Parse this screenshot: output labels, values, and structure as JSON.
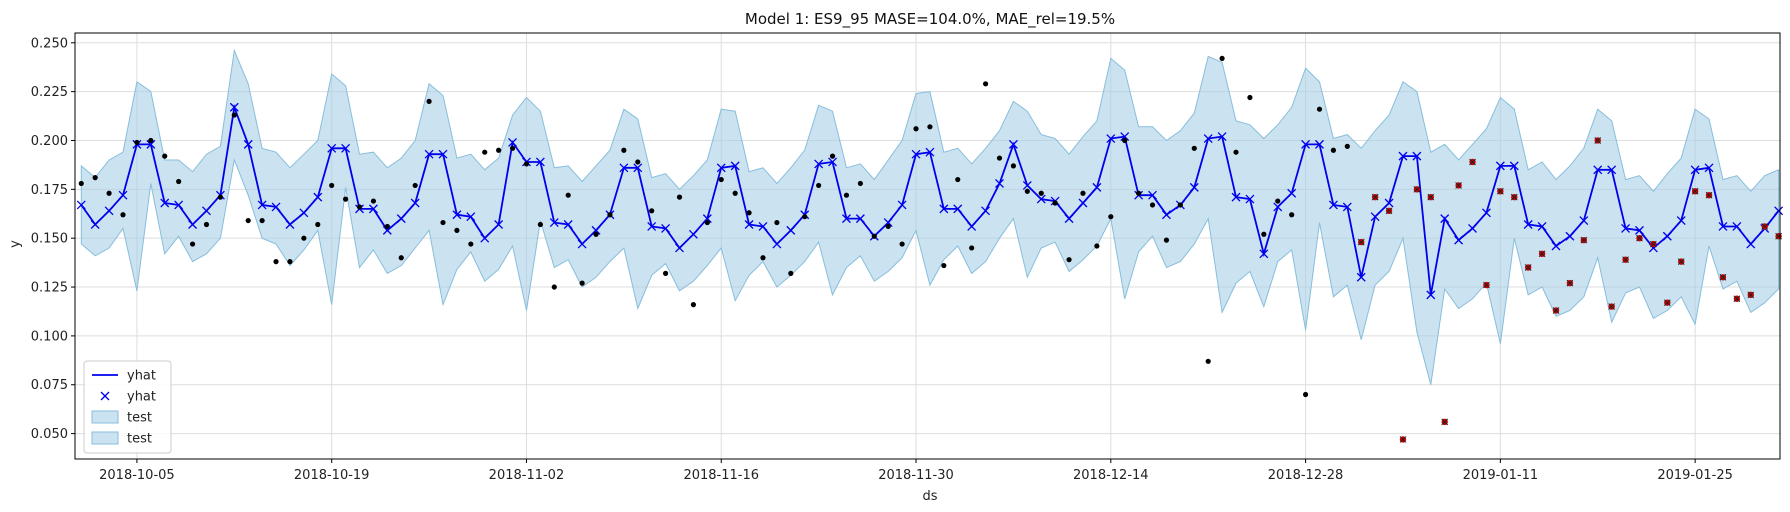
{
  "chart_data": {
    "type": "line",
    "title": "Model 1: ES9_95 MASE=104.0%, MAE_rel=19.5%",
    "xlabel": "ds",
    "ylabel": "y",
    "x_ticks": [
      "2018-10-05",
      "2018-10-19",
      "2018-11-02",
      "2018-11-16",
      "2018-11-30",
      "2018-12-14",
      "2018-12-28",
      "2019-01-11",
      "2019-01-25"
    ],
    "y_ticks": [
      "0.050",
      "0.075",
      "0.100",
      "0.125",
      "0.150",
      "0.175",
      "0.200",
      "0.225",
      "0.250"
    ],
    "ylim": [
      0.037,
      0.255
    ],
    "xlim": [
      "2018-10-01",
      "2019-01-31"
    ],
    "grid": true,
    "legend_position": "bottom-left",
    "legend": [
      "yhat",
      "yhat",
      "test",
      "test"
    ],
    "colors": {
      "yhat": "#0000ee",
      "band": "#a8cfe6",
      "band_edge": "#87bedc",
      "actual": "#000000",
      "test_marker": "#cc0000"
    },
    "series": [
      {
        "name": "yhat",
        "x": [
          "2018-10-01",
          "2018-10-02",
          "2018-10-03",
          "2018-10-04",
          "2018-10-05",
          "2018-10-06",
          "2018-10-07",
          "2018-10-08",
          "2018-10-09",
          "2018-10-10",
          "2018-10-11",
          "2018-10-12",
          "2018-10-13",
          "2018-10-14",
          "2018-10-15",
          "2018-10-16",
          "2018-10-17",
          "2018-10-18",
          "2018-10-19",
          "2018-10-20",
          "2018-10-21",
          "2018-10-22",
          "2018-10-23",
          "2018-10-24",
          "2018-10-25",
          "2018-10-26",
          "2018-10-27",
          "2018-10-28",
          "2018-10-29",
          "2018-10-30",
          "2018-10-31",
          "2018-11-01",
          "2018-11-02",
          "2018-11-03",
          "2018-11-04",
          "2018-11-05",
          "2018-11-06",
          "2018-11-07",
          "2018-11-08",
          "2018-11-09",
          "2018-11-10",
          "2018-11-11",
          "2018-11-12",
          "2018-11-13",
          "2018-11-14",
          "2018-11-15",
          "2018-11-16",
          "2018-11-17",
          "2018-11-18",
          "2018-11-19",
          "2018-11-20",
          "2018-11-21",
          "2018-11-22",
          "2018-11-23",
          "2018-11-24",
          "2018-11-25",
          "2018-11-26",
          "2018-11-27",
          "2018-11-28",
          "2018-11-29",
          "2018-11-30",
          "2018-12-01",
          "2018-12-02",
          "2018-12-03",
          "2018-12-04",
          "2018-12-05",
          "2018-12-06",
          "2018-12-07",
          "2018-12-08",
          "2018-12-09",
          "2018-12-10",
          "2018-12-11",
          "2018-12-12",
          "2018-12-13",
          "2018-12-14",
          "2018-12-15",
          "2018-12-16",
          "2018-12-17",
          "2018-12-18",
          "2018-12-19",
          "2018-12-20",
          "2018-12-21",
          "2018-12-22",
          "2018-12-23",
          "2018-12-24",
          "2018-12-25",
          "2018-12-26",
          "2018-12-27",
          "2018-12-28",
          "2018-12-29",
          "2018-12-30",
          "2018-12-31",
          "2019-01-01",
          "2019-01-02",
          "2019-01-03",
          "2019-01-04",
          "2019-01-05",
          "2019-01-06",
          "2019-01-07",
          "2019-01-08",
          "2019-01-09",
          "2019-01-10",
          "2019-01-11",
          "2019-01-12",
          "2019-01-13",
          "2019-01-14",
          "2019-01-15",
          "2019-01-16",
          "2019-01-17",
          "2019-01-18",
          "2019-01-19",
          "2019-01-20",
          "2019-01-21",
          "2019-01-22",
          "2019-01-23",
          "2019-01-24",
          "2019-01-25",
          "2019-01-26",
          "2019-01-27",
          "2019-01-28",
          "2019-01-29",
          "2019-01-30",
          "2019-01-31"
        ],
        "values": [
          0.167,
          0.157,
          0.164,
          0.172,
          0.198,
          0.198,
          0.168,
          0.167,
          0.157,
          0.164,
          0.172,
          0.217,
          0.198,
          0.167,
          0.166,
          0.157,
          0.163,
          0.171,
          0.196,
          0.196,
          0.165,
          0.165,
          0.154,
          0.16,
          0.168,
          0.193,
          0.193,
          0.162,
          0.161,
          0.15,
          0.157,
          0.199,
          0.189,
          0.189,
          0.158,
          0.157,
          0.147,
          0.154,
          0.162,
          0.186,
          0.186,
          0.156,
          0.155,
          0.145,
          0.152,
          0.16,
          0.186,
          0.187,
          0.157,
          0.156,
          0.147,
          0.154,
          0.162,
          0.188,
          0.189,
          0.16,
          0.16,
          0.151,
          0.158,
          0.167,
          0.193,
          0.194,
          0.165,
          0.165,
          0.156,
          0.164,
          0.178,
          0.198,
          0.177,
          0.17,
          0.169,
          0.16,
          0.168,
          0.176,
          0.201,
          0.202,
          0.172,
          0.172,
          0.162,
          0.167,
          0.176,
          0.201,
          0.202,
          0.171,
          0.17,
          0.142,
          0.166,
          0.173,
          0.198,
          0.198,
          0.167,
          0.166,
          0.13,
          0.161,
          0.168,
          0.192,
          0.192,
          0.121,
          0.16,
          0.149,
          0.155,
          0.163,
          0.187,
          0.187,
          0.157,
          0.156,
          0.146,
          0.151,
          0.159,
          0.185,
          0.185,
          0.155,
          0.154,
          0.145,
          0.151,
          0.159,
          0.185,
          0.186,
          0.156,
          0.156,
          0.147,
          0.155,
          0.164
        ],
        "lower": [
          0.147,
          0.141,
          0.145,
          0.155,
          0.123,
          0.178,
          0.142,
          0.151,
          0.138,
          0.142,
          0.15,
          0.19,
          0.172,
          0.15,
          0.147,
          0.136,
          0.144,
          0.154,
          0.116,
          0.176,
          0.135,
          0.144,
          0.132,
          0.136,
          0.145,
          0.154,
          0.116,
          0.134,
          0.143,
          0.128,
          0.134,
          0.146,
          0.113,
          0.159,
          0.135,
          0.139,
          0.125,
          0.13,
          0.138,
          0.145,
          0.114,
          0.131,
          0.137,
          0.123,
          0.128,
          0.136,
          0.145,
          0.118,
          0.131,
          0.138,
          0.125,
          0.131,
          0.138,
          0.148,
          0.121,
          0.135,
          0.141,
          0.128,
          0.133,
          0.14,
          0.154,
          0.126,
          0.139,
          0.146,
          0.132,
          0.138,
          0.15,
          0.16,
          0.13,
          0.145,
          0.148,
          0.133,
          0.139,
          0.146,
          0.16,
          0.119,
          0.143,
          0.151,
          0.135,
          0.138,
          0.147,
          0.16,
          0.112,
          0.127,
          0.133,
          0.115,
          0.138,
          0.144,
          0.103,
          0.158,
          0.12,
          0.126,
          0.098,
          0.126,
          0.133,
          0.15,
          0.102,
          0.075,
          0.124,
          0.114,
          0.119,
          0.127,
          0.096,
          0.15,
          0.121,
          0.125,
          0.11,
          0.113,
          0.12,
          0.14,
          0.107,
          0.122,
          0.125,
          0.109,
          0.113,
          0.12,
          0.106,
          0.146,
          0.124,
          0.128,
          0.112,
          0.117,
          0.124
        ],
        "upper": [
          0.187,
          0.181,
          0.19,
          0.194,
          0.23,
          0.225,
          0.19,
          0.19,
          0.184,
          0.193,
          0.197,
          0.246,
          0.229,
          0.196,
          0.194,
          0.186,
          0.193,
          0.2,
          0.234,
          0.228,
          0.193,
          0.194,
          0.186,
          0.191,
          0.2,
          0.229,
          0.223,
          0.191,
          0.193,
          0.185,
          0.191,
          0.213,
          0.222,
          0.215,
          0.186,
          0.187,
          0.179,
          0.187,
          0.195,
          0.216,
          0.211,
          0.181,
          0.183,
          0.175,
          0.182,
          0.19,
          0.216,
          0.215,
          0.184,
          0.186,
          0.178,
          0.186,
          0.195,
          0.218,
          0.215,
          0.186,
          0.188,
          0.18,
          0.19,
          0.2,
          0.224,
          0.225,
          0.194,
          0.196,
          0.188,
          0.196,
          0.205,
          0.22,
          0.215,
          0.203,
          0.201,
          0.193,
          0.202,
          0.21,
          0.242,
          0.236,
          0.207,
          0.207,
          0.2,
          0.205,
          0.214,
          0.243,
          0.24,
          0.21,
          0.208,
          0.201,
          0.208,
          0.217,
          0.237,
          0.23,
          0.201,
          0.203,
          0.196,
          0.205,
          0.213,
          0.23,
          0.225,
          0.194,
          0.198,
          0.19,
          0.198,
          0.206,
          0.222,
          0.216,
          0.185,
          0.189,
          0.18,
          0.187,
          0.196,
          0.216,
          0.21,
          0.18,
          0.182,
          0.174,
          0.183,
          0.191,
          0.216,
          0.211,
          0.18,
          0.182,
          0.174,
          0.182,
          0.185
        ]
      },
      {
        "name": "",
        "kind": "actual",
        "points": [
          [
            "2018-10-01",
            0.178
          ],
          [
            "2018-10-02",
            0.181
          ],
          [
            "2018-10-03",
            0.173
          ],
          [
            "2018-10-04",
            0.162
          ],
          [
            "2018-10-05",
            0.199
          ],
          [
            "2018-10-06",
            0.2
          ],
          [
            "2018-10-07",
            0.192
          ],
          [
            "2018-10-08",
            0.179
          ],
          [
            "2018-10-09",
            0.147
          ],
          [
            "2018-10-10",
            0.157
          ],
          [
            "2018-10-11",
            0.171
          ],
          [
            "2018-10-12",
            0.213
          ],
          [
            "2018-10-13",
            0.159
          ],
          [
            "2018-10-14",
            0.159
          ],
          [
            "2018-10-15",
            0.138
          ],
          [
            "2018-10-16",
            0.138
          ],
          [
            "2018-10-17",
            0.15
          ],
          [
            "2018-10-18",
            0.157
          ],
          [
            "2018-10-19",
            0.177
          ],
          [
            "2018-10-20",
            0.17
          ],
          [
            "2018-10-21",
            0.166
          ],
          [
            "2018-10-22",
            0.169
          ],
          [
            "2018-10-23",
            0.156
          ],
          [
            "2018-10-24",
            0.14
          ],
          [
            "2018-10-25",
            0.177
          ],
          [
            "2018-10-26",
            0.22
          ],
          [
            "2018-10-27",
            0.158
          ],
          [
            "2018-10-28",
            0.154
          ],
          [
            "2018-10-29",
            0.147
          ],
          [
            "2018-10-30",
            0.194
          ],
          [
            "2018-10-31",
            0.195
          ],
          [
            "2018-11-01",
            0.196
          ],
          [
            "2018-11-02",
            0.188
          ],
          [
            "2018-11-03",
            0.157
          ],
          [
            "2018-11-04",
            0.125
          ],
          [
            "2018-11-05",
            0.172
          ],
          [
            "2018-11-06",
            0.127
          ],
          [
            "2018-11-07",
            0.152
          ],
          [
            "2018-11-08",
            0.162
          ],
          [
            "2018-11-09",
            0.195
          ],
          [
            "2018-11-10",
            0.189
          ],
          [
            "2018-11-11",
            0.164
          ],
          [
            "2018-11-12",
            0.132
          ],
          [
            "2018-11-13",
            0.171
          ],
          [
            "2018-11-14",
            0.116
          ],
          [
            "2018-11-15",
            0.158
          ],
          [
            "2018-11-16",
            0.18
          ],
          [
            "2018-11-17",
            0.173
          ],
          [
            "2018-11-18",
            0.163
          ],
          [
            "2018-11-19",
            0.14
          ],
          [
            "2018-11-20",
            0.158
          ],
          [
            "2018-11-21",
            0.132
          ],
          [
            "2018-11-22",
            0.161
          ],
          [
            "2018-11-23",
            0.177
          ],
          [
            "2018-11-24",
            0.192
          ],
          [
            "2018-11-25",
            0.172
          ],
          [
            "2018-11-26",
            0.178
          ],
          [
            "2018-11-27",
            0.151
          ],
          [
            "2018-11-28",
            0.156
          ],
          [
            "2018-11-29",
            0.147
          ],
          [
            "2018-11-30",
            0.206
          ],
          [
            "2018-12-01",
            0.207
          ],
          [
            "2018-12-02",
            0.136
          ],
          [
            "2018-12-03",
            0.18
          ],
          [
            "2018-12-04",
            0.145
          ],
          [
            "2018-12-05",
            0.229
          ],
          [
            "2018-12-06",
            0.191
          ],
          [
            "2018-12-07",
            0.187
          ],
          [
            "2018-12-08",
            0.174
          ],
          [
            "2018-12-09",
            0.173
          ],
          [
            "2018-12-10",
            0.168
          ],
          [
            "2018-12-11",
            0.139
          ],
          [
            "2018-12-12",
            0.173
          ],
          [
            "2018-12-13",
            0.146
          ],
          [
            "2018-12-14",
            0.161
          ],
          [
            "2018-12-15",
            0.2
          ],
          [
            "2018-12-16",
            0.173
          ],
          [
            "2018-12-17",
            0.167
          ],
          [
            "2018-12-18",
            0.149
          ],
          [
            "2018-12-19",
            0.167
          ],
          [
            "2018-12-20",
            0.196
          ],
          [
            "2018-12-21",
            0.087
          ],
          [
            "2018-12-22",
            0.242
          ],
          [
            "2018-12-23",
            0.194
          ],
          [
            "2018-12-24",
            0.222
          ],
          [
            "2018-12-25",
            0.152
          ],
          [
            "2018-12-26",
            0.169
          ],
          [
            "2018-12-27",
            0.162
          ],
          [
            "2018-12-28",
            0.07
          ],
          [
            "2018-12-29",
            0.216
          ],
          [
            "2018-12-30",
            0.195
          ],
          [
            "2018-12-31",
            0.197
          ]
        ]
      },
      {
        "name": "",
        "kind": "test_marker",
        "points": [
          [
            "2019-01-01",
            0.148
          ],
          [
            "2019-01-02",
            0.171
          ],
          [
            "2019-01-03",
            0.164
          ],
          [
            "2019-01-04",
            0.047
          ],
          [
            "2019-01-05",
            0.175
          ],
          [
            "2019-01-06",
            0.171
          ],
          [
            "2019-01-07",
            0.056
          ],
          [
            "2019-01-08",
            0.177
          ],
          [
            "2019-01-09",
            0.189
          ],
          [
            "2019-01-10",
            0.126
          ],
          [
            "2019-01-11",
            0.174
          ],
          [
            "2019-01-12",
            0.171
          ],
          [
            "2019-01-13",
            0.135
          ],
          [
            "2019-01-14",
            0.142
          ],
          [
            "2019-01-15",
            0.113
          ],
          [
            "2019-01-16",
            0.127
          ],
          [
            "2019-01-17",
            0.149
          ],
          [
            "2019-01-18",
            0.2
          ],
          [
            "2019-01-19",
            0.115
          ],
          [
            "2019-01-20",
            0.139
          ],
          [
            "2019-01-21",
            0.15
          ],
          [
            "2019-01-22",
            0.147
          ],
          [
            "2019-01-23",
            0.117
          ],
          [
            "2019-01-24",
            0.138
          ],
          [
            "2019-01-25",
            0.174
          ],
          [
            "2019-01-26",
            0.172
          ],
          [
            "2019-01-27",
            0.13
          ],
          [
            "2019-01-28",
            0.119
          ],
          [
            "2019-01-29",
            0.121
          ],
          [
            "2019-01-30",
            0.156
          ],
          [
            "2019-01-31",
            0.151
          ]
        ]
      }
    ]
  }
}
